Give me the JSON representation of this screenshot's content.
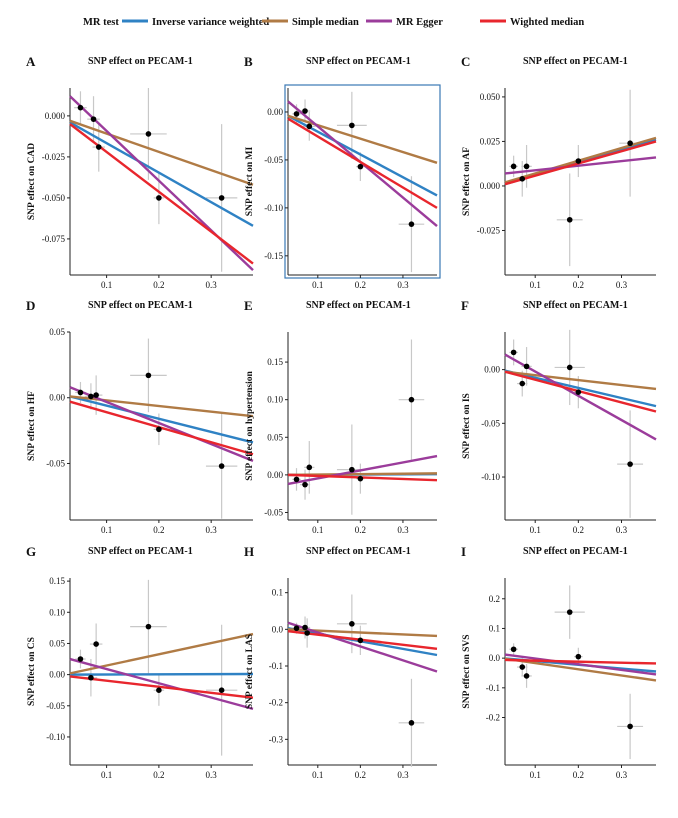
{
  "legend": {
    "title": "MR test",
    "items": [
      {
        "label": "Inverse variance weighted",
        "color": "#2f82c4"
      },
      {
        "label": "Simple median",
        "color": "#b07b45"
      },
      {
        "label": "MR Egger",
        "color": "#9b3c9b"
      },
      {
        "label": "Wighted median",
        "color": "#e8262d"
      }
    ]
  },
  "chart_data": [
    {
      "type": "scatter",
      "panel": "A",
      "title": "SNP effect on PECAM-1",
      "xlabel": "",
      "ylabel": "SNP effect on CAD",
      "xlim": [
        0.03,
        0.38
      ],
      "ylim": [
        -0.097,
        0.017
      ],
      "xticks": [
        0.1,
        0.2,
        0.3
      ],
      "xtick_labels": [
        "0.1",
        "0.2",
        "0.3"
      ],
      "yticks": [
        0.0,
        -0.025,
        -0.05,
        -0.075
      ],
      "ytick_labels": [
        "0.000",
        "-0.025",
        "-0.050",
        "-0.075"
      ],
      "points": [
        {
          "x": 0.05,
          "y": 0.005,
          "xerr": 0.012,
          "yerr": 0.01
        },
        {
          "x": 0.075,
          "y": -0.002,
          "xerr": 0.012,
          "yerr": 0.014
        },
        {
          "x": 0.085,
          "y": -0.019,
          "xerr": 0.012,
          "yerr": 0.015
        },
        {
          "x": 0.18,
          "y": -0.011,
          "xerr": 0.035,
          "yerr": 0.028
        },
        {
          "x": 0.2,
          "y": -0.05,
          "xerr": 0.01,
          "yerr": 0.016
        },
        {
          "x": 0.32,
          "y": -0.05,
          "xerr": 0.03,
          "yerr": 0.045
        }
      ],
      "lines": [
        {
          "method": "Inverse variance weighted",
          "x": [
            0.03,
            0.38
          ],
          "y": [
            -0.004,
            -0.067
          ]
        },
        {
          "method": "Simple median",
          "x": [
            0.03,
            0.38
          ],
          "y": [
            -0.003,
            -0.042
          ]
        },
        {
          "method": "MR Egger",
          "x": [
            0.03,
            0.38
          ],
          "y": [
            0.012,
            -0.094
          ]
        },
        {
          "method": "Wighted median",
          "x": [
            0.03,
            0.38
          ],
          "y": [
            -0.005,
            -0.09
          ]
        }
      ]
    },
    {
      "type": "scatter",
      "panel": "B",
      "title": "SNP effect on PECAM-1",
      "xlabel": "",
      "ylabel": "SNP effect on MI",
      "xlim": [
        0.03,
        0.38
      ],
      "ylim": [
        -0.17,
        0.025
      ],
      "xticks": [
        0.1,
        0.2,
        0.3
      ],
      "xtick_labels": [
        "0.1",
        "0.2",
        "0.3"
      ],
      "yticks": [
        0.0,
        -0.05,
        -0.1,
        -0.15
      ],
      "ytick_labels": [
        "0.00",
        "-0.05",
        "-0.10",
        "-0.15"
      ],
      "points": [
        {
          "x": 0.05,
          "y": -0.002,
          "xerr": 0.01,
          "yerr": 0.01
        },
        {
          "x": 0.07,
          "y": 0.001,
          "xerr": 0.012,
          "yerr": 0.012
        },
        {
          "x": 0.08,
          "y": -0.015,
          "xerr": 0.015,
          "yerr": 0.015
        },
        {
          "x": 0.18,
          "y": -0.014,
          "xerr": 0.035,
          "yerr": 0.035
        },
        {
          "x": 0.2,
          "y": -0.057,
          "xerr": 0.01,
          "yerr": 0.015
        },
        {
          "x": 0.32,
          "y": -0.117,
          "xerr": 0.03,
          "yerr": 0.05
        }
      ],
      "lines": [
        {
          "method": "Inverse variance weighted",
          "x": [
            0.03,
            0.38
          ],
          "y": [
            -0.004,
            -0.087
          ]
        },
        {
          "method": "Simple median",
          "x": [
            0.03,
            0.38
          ],
          "y": [
            -0.004,
            -0.053
          ]
        },
        {
          "method": "MR Egger",
          "x": [
            0.03,
            0.38
          ],
          "y": [
            0.011,
            -0.119
          ]
        },
        {
          "method": "Wighted median",
          "x": [
            0.03,
            0.38
          ],
          "y": [
            -0.007,
            -0.1
          ]
        }
      ]
    },
    {
      "type": "scatter",
      "panel": "C",
      "title": "SNP effect on PECAM-1",
      "xlabel": "",
      "ylabel": "SNP effect on AF",
      "xlim": [
        0.03,
        0.38
      ],
      "ylim": [
        -0.05,
        0.055
      ],
      "xticks": [
        0.1,
        0.2,
        0.3
      ],
      "xtick_labels": [
        "0.1",
        "0.2",
        "0.3"
      ],
      "yticks": [
        0.05,
        0.025,
        0.0,
        -0.025
      ],
      "ytick_labels": [
        "0.050",
        "0.025",
        "0.000",
        "-0.025"
      ],
      "points": [
        {
          "x": 0.05,
          "y": 0.011,
          "xerr": 0.01,
          "yerr": 0.006
        },
        {
          "x": 0.07,
          "y": 0.004,
          "xerr": 0.01,
          "yerr": 0.01
        },
        {
          "x": 0.08,
          "y": 0.011,
          "xerr": 0.012,
          "yerr": 0.012
        },
        {
          "x": 0.18,
          "y": -0.019,
          "xerr": 0.03,
          "yerr": 0.026
        },
        {
          "x": 0.2,
          "y": 0.014,
          "xerr": 0.01,
          "yerr": 0.009
        },
        {
          "x": 0.32,
          "y": 0.024,
          "xerr": 0.025,
          "yerr": 0.03
        }
      ],
      "lines": [
        {
          "method": "Inverse variance weighted",
          "x": [
            0.03,
            0.38
          ],
          "y": [
            0.001,
            0.026
          ]
        },
        {
          "method": "Simple median",
          "x": [
            0.03,
            0.38
          ],
          "y": [
            0.002,
            0.027
          ]
        },
        {
          "method": "MR Egger",
          "x": [
            0.03,
            0.38
          ],
          "y": [
            0.007,
            0.016
          ]
        },
        {
          "method": "Wighted median",
          "x": [
            0.03,
            0.38
          ],
          "y": [
            0.001,
            0.025
          ]
        }
      ]
    },
    {
      "type": "scatter",
      "panel": "D",
      "title": "SNP effect on PECAM-1",
      "xlabel": "",
      "ylabel": "SNP effect on HF",
      "xlim": [
        0.03,
        0.38
      ],
      "ylim": [
        -0.093,
        0.05
      ],
      "xticks": [
        0.1,
        0.2,
        0.3
      ],
      "xtick_labels": [
        "0.1",
        "0.2",
        "0.3"
      ],
      "yticks": [
        0.05,
        0.0,
        -0.05
      ],
      "ytick_labels": [
        "0.05",
        "0.00",
        "-0.05"
      ],
      "points": [
        {
          "x": 0.05,
          "y": 0.004,
          "xerr": 0.01,
          "yerr": 0.008
        },
        {
          "x": 0.07,
          "y": 0.001,
          "xerr": 0.012,
          "yerr": 0.01
        },
        {
          "x": 0.08,
          "y": 0.002,
          "xerr": 0.012,
          "yerr": 0.015
        },
        {
          "x": 0.18,
          "y": 0.017,
          "xerr": 0.035,
          "yerr": 0.028
        },
        {
          "x": 0.2,
          "y": -0.024,
          "xerr": 0.01,
          "yerr": 0.012
        },
        {
          "x": 0.32,
          "y": -0.052,
          "xerr": 0.03,
          "yerr": 0.04
        }
      ],
      "lines": [
        {
          "method": "Inverse variance weighted",
          "x": [
            0.03,
            0.38
          ],
          "y": [
            0.001,
            -0.034
          ]
        },
        {
          "method": "Simple median",
          "x": [
            0.03,
            0.38
          ],
          "y": [
            0.001,
            -0.014
          ]
        },
        {
          "method": "MR Egger",
          "x": [
            0.03,
            0.38
          ],
          "y": [
            0.008,
            -0.048
          ]
        },
        {
          "method": "Wighted median",
          "x": [
            0.03,
            0.38
          ],
          "y": [
            -0.003,
            -0.043
          ]
        }
      ]
    },
    {
      "type": "scatter",
      "panel": "E",
      "title": "SNP effect on PECAM-1",
      "xlabel": "",
      "ylabel": "SNP effect on hypertension",
      "xlim": [
        0.03,
        0.38
      ],
      "ylim": [
        -0.06,
        0.19
      ],
      "xticks": [
        0.1,
        0.2,
        0.3
      ],
      "xtick_labels": [
        "0.1",
        "0.2",
        "0.3"
      ],
      "yticks": [
        0.15,
        0.1,
        0.05,
        0.0,
        -0.05
      ],
      "ytick_labels": [
        "0.15",
        "0.10",
        "0.05",
        "0.00",
        "-0.05"
      ],
      "points": [
        {
          "x": 0.05,
          "y": -0.006,
          "xerr": 0.01,
          "yerr": 0.015
        },
        {
          "x": 0.07,
          "y": -0.013,
          "xerr": 0.012,
          "yerr": 0.02
        },
        {
          "x": 0.08,
          "y": 0.01,
          "xerr": 0.012,
          "yerr": 0.035
        },
        {
          "x": 0.18,
          "y": 0.007,
          "xerr": 0.035,
          "yerr": 0.06
        },
        {
          "x": 0.2,
          "y": -0.005,
          "xerr": 0.01,
          "yerr": 0.02
        },
        {
          "x": 0.32,
          "y": 0.1,
          "xerr": 0.03,
          "yerr": 0.08
        }
      ],
      "lines": [
        {
          "method": "Inverse variance weighted",
          "x": [
            0.03,
            0.38
          ],
          "y": [
            0.0,
            0.001
          ]
        },
        {
          "method": "Simple median",
          "x": [
            0.03,
            0.38
          ],
          "y": [
            0.0,
            0.002
          ]
        },
        {
          "method": "MR Egger",
          "x": [
            0.03,
            0.38
          ],
          "y": [
            -0.012,
            0.025
          ]
        },
        {
          "method": "Wighted median",
          "x": [
            0.03,
            0.38
          ],
          "y": [
            0.0,
            -0.007
          ]
        }
      ]
    },
    {
      "type": "scatter",
      "panel": "F",
      "title": "SNP effect on PECAM-1",
      "xlabel": "",
      "ylabel": "SNP effect on IS",
      "xlim": [
        0.03,
        0.38
      ],
      "ylim": [
        -0.14,
        0.035
      ],
      "xticks": [
        0.1,
        0.2,
        0.3
      ],
      "xtick_labels": [
        "0.1",
        "0.2",
        "0.3"
      ],
      "yticks": [
        0.0,
        -0.05,
        -0.1
      ],
      "ytick_labels": [
        "0.00",
        "-0.05",
        "-0.10"
      ],
      "points": [
        {
          "x": 0.05,
          "y": 0.016,
          "xerr": 0.01,
          "yerr": 0.012
        },
        {
          "x": 0.07,
          "y": -0.013,
          "xerr": 0.012,
          "yerr": 0.012
        },
        {
          "x": 0.08,
          "y": 0.003,
          "xerr": 0.012,
          "yerr": 0.018
        },
        {
          "x": 0.18,
          "y": 0.002,
          "xerr": 0.035,
          "yerr": 0.035
        },
        {
          "x": 0.2,
          "y": -0.021,
          "xerr": 0.01,
          "yerr": 0.015
        },
        {
          "x": 0.32,
          "y": -0.088,
          "xerr": 0.03,
          "yerr": 0.05
        }
      ],
      "lines": [
        {
          "method": "Inverse variance weighted",
          "x": [
            0.03,
            0.38
          ],
          "y": [
            -0.001,
            -0.034
          ]
        },
        {
          "method": "Simple median",
          "x": [
            0.03,
            0.38
          ],
          "y": [
            -0.002,
            -0.018
          ]
        },
        {
          "method": "MR Egger",
          "x": [
            0.03,
            0.38
          ],
          "y": [
            0.014,
            -0.065
          ]
        },
        {
          "method": "Wighted median",
          "x": [
            0.03,
            0.38
          ],
          "y": [
            -0.002,
            -0.039
          ]
        }
      ]
    },
    {
      "type": "scatter",
      "panel": "G",
      "title": "SNP effect on PECAM-1",
      "xlabel": "",
      "ylabel": "SNP effect on CS",
      "xlim": [
        0.03,
        0.38
      ],
      "ylim": [
        -0.145,
        0.155
      ],
      "xticks": [
        0.1,
        0.2,
        0.3
      ],
      "xtick_labels": [
        "0.1",
        "0.2",
        "0.3"
      ],
      "yticks": [
        0.15,
        0.1,
        0.05,
        0.0,
        -0.05,
        -0.1
      ],
      "ytick_labels": [
        "0.15",
        "0.10",
        "0.05",
        "0.00",
        "-0.05",
        "-0.10"
      ],
      "points": [
        {
          "x": 0.05,
          "y": 0.025,
          "xerr": 0.01,
          "yerr": 0.015
        },
        {
          "x": 0.07,
          "y": -0.005,
          "xerr": 0.012,
          "yerr": 0.03
        },
        {
          "x": 0.08,
          "y": 0.049,
          "xerr": 0.012,
          "yerr": 0.033
        },
        {
          "x": 0.18,
          "y": 0.077,
          "xerr": 0.035,
          "yerr": 0.075
        },
        {
          "x": 0.2,
          "y": -0.025,
          "xerr": 0.01,
          "yerr": 0.025
        },
        {
          "x": 0.32,
          "y": -0.025,
          "xerr": 0.03,
          "yerr": 0.105
        }
      ],
      "lines": [
        {
          "method": "Inverse variance weighted",
          "x": [
            0.03,
            0.38
          ],
          "y": [
            0.0,
            0.001
          ]
        },
        {
          "method": "Simple median",
          "x": [
            0.03,
            0.38
          ],
          "y": [
            0.002,
            0.065
          ]
        },
        {
          "method": "MR Egger",
          "x": [
            0.03,
            0.38
          ],
          "y": [
            0.025,
            -0.055
          ]
        },
        {
          "method": "Wighted median",
          "x": [
            0.03,
            0.38
          ],
          "y": [
            -0.003,
            -0.037
          ]
        }
      ]
    },
    {
      "type": "scatter",
      "panel": "H",
      "title": "SNP effect on PECAM-1",
      "xlabel": "",
      "ylabel": "SNP effect on LAS",
      "xlim": [
        0.03,
        0.38
      ],
      "ylim": [
        -0.37,
        0.14
      ],
      "xticks": [
        0.1,
        0.2,
        0.3
      ],
      "xtick_labels": [
        "0.1",
        "0.2",
        "0.3"
      ],
      "yticks": [
        0.1,
        0.0,
        -0.1,
        -0.2,
        -0.3
      ],
      "ytick_labels": [
        "0.1",
        "0.0",
        "-0.1",
        "-0.2",
        "-0.3"
      ],
      "points": [
        {
          "x": 0.05,
          "y": 0.003,
          "xerr": 0.01,
          "yerr": 0.015
        },
        {
          "x": 0.07,
          "y": 0.005,
          "xerr": 0.012,
          "yerr": 0.03
        },
        {
          "x": 0.075,
          "y": -0.01,
          "xerr": 0.012,
          "yerr": 0.04
        },
        {
          "x": 0.18,
          "y": 0.015,
          "xerr": 0.035,
          "yerr": 0.08
        },
        {
          "x": 0.2,
          "y": -0.03,
          "xerr": 0.01,
          "yerr": 0.04
        },
        {
          "x": 0.32,
          "y": -0.255,
          "xerr": 0.03,
          "yerr": 0.12
        }
      ],
      "lines": [
        {
          "method": "Inverse variance weighted",
          "x": [
            0.03,
            0.38
          ],
          "y": [
            0.003,
            -0.07
          ]
        },
        {
          "method": "Simple median",
          "x": [
            0.03,
            0.38
          ],
          "y": [
            0.0,
            -0.018
          ]
        },
        {
          "method": "MR Egger",
          "x": [
            0.03,
            0.38
          ],
          "y": [
            0.018,
            -0.115
          ]
        },
        {
          "method": "Wighted median",
          "x": [
            0.03,
            0.38
          ],
          "y": [
            -0.005,
            -0.053
          ]
        }
      ]
    },
    {
      "type": "scatter",
      "panel": "I",
      "title": "SNP effect on PECAM-1",
      "xlabel": "",
      "ylabel": "SNP effect on SVS",
      "xlim": [
        0.03,
        0.38
      ],
      "ylim": [
        -0.36,
        0.27
      ],
      "xticks": [
        0.1,
        0.2,
        0.3
      ],
      "xtick_labels": [
        "0.1",
        "0.2",
        "0.3"
      ],
      "yticks": [
        0.2,
        0.1,
        0.0,
        -0.1,
        -0.2
      ],
      "ytick_labels": [
        "0.2",
        "0.1",
        "0.0",
        "-0.1",
        "-0.2"
      ],
      "points": [
        {
          "x": 0.05,
          "y": 0.03,
          "xerr": 0.01,
          "yerr": 0.02
        },
        {
          "x": 0.07,
          "y": -0.03,
          "xerr": 0.012,
          "yerr": 0.03
        },
        {
          "x": 0.08,
          "y": -0.06,
          "xerr": 0.012,
          "yerr": 0.04
        },
        {
          "x": 0.18,
          "y": 0.155,
          "xerr": 0.035,
          "yerr": 0.09
        },
        {
          "x": 0.2,
          "y": 0.005,
          "xerr": 0.01,
          "yerr": 0.03
        },
        {
          "x": 0.32,
          "y": -0.23,
          "xerr": 0.03,
          "yerr": 0.11
        }
      ],
      "lines": [
        {
          "method": "Inverse variance weighted",
          "x": [
            0.03,
            0.38
          ],
          "y": [
            -0.001,
            -0.045
          ]
        },
        {
          "method": "Simple median",
          "x": [
            0.03,
            0.38
          ],
          "y": [
            -0.002,
            -0.075
          ]
        },
        {
          "method": "MR Egger",
          "x": [
            0.03,
            0.38
          ],
          "y": [
            0.012,
            -0.055
          ]
        },
        {
          "method": "Wighted median",
          "x": [
            0.03,
            0.38
          ],
          "y": [
            -0.006,
            -0.018
          ]
        }
      ]
    }
  ]
}
